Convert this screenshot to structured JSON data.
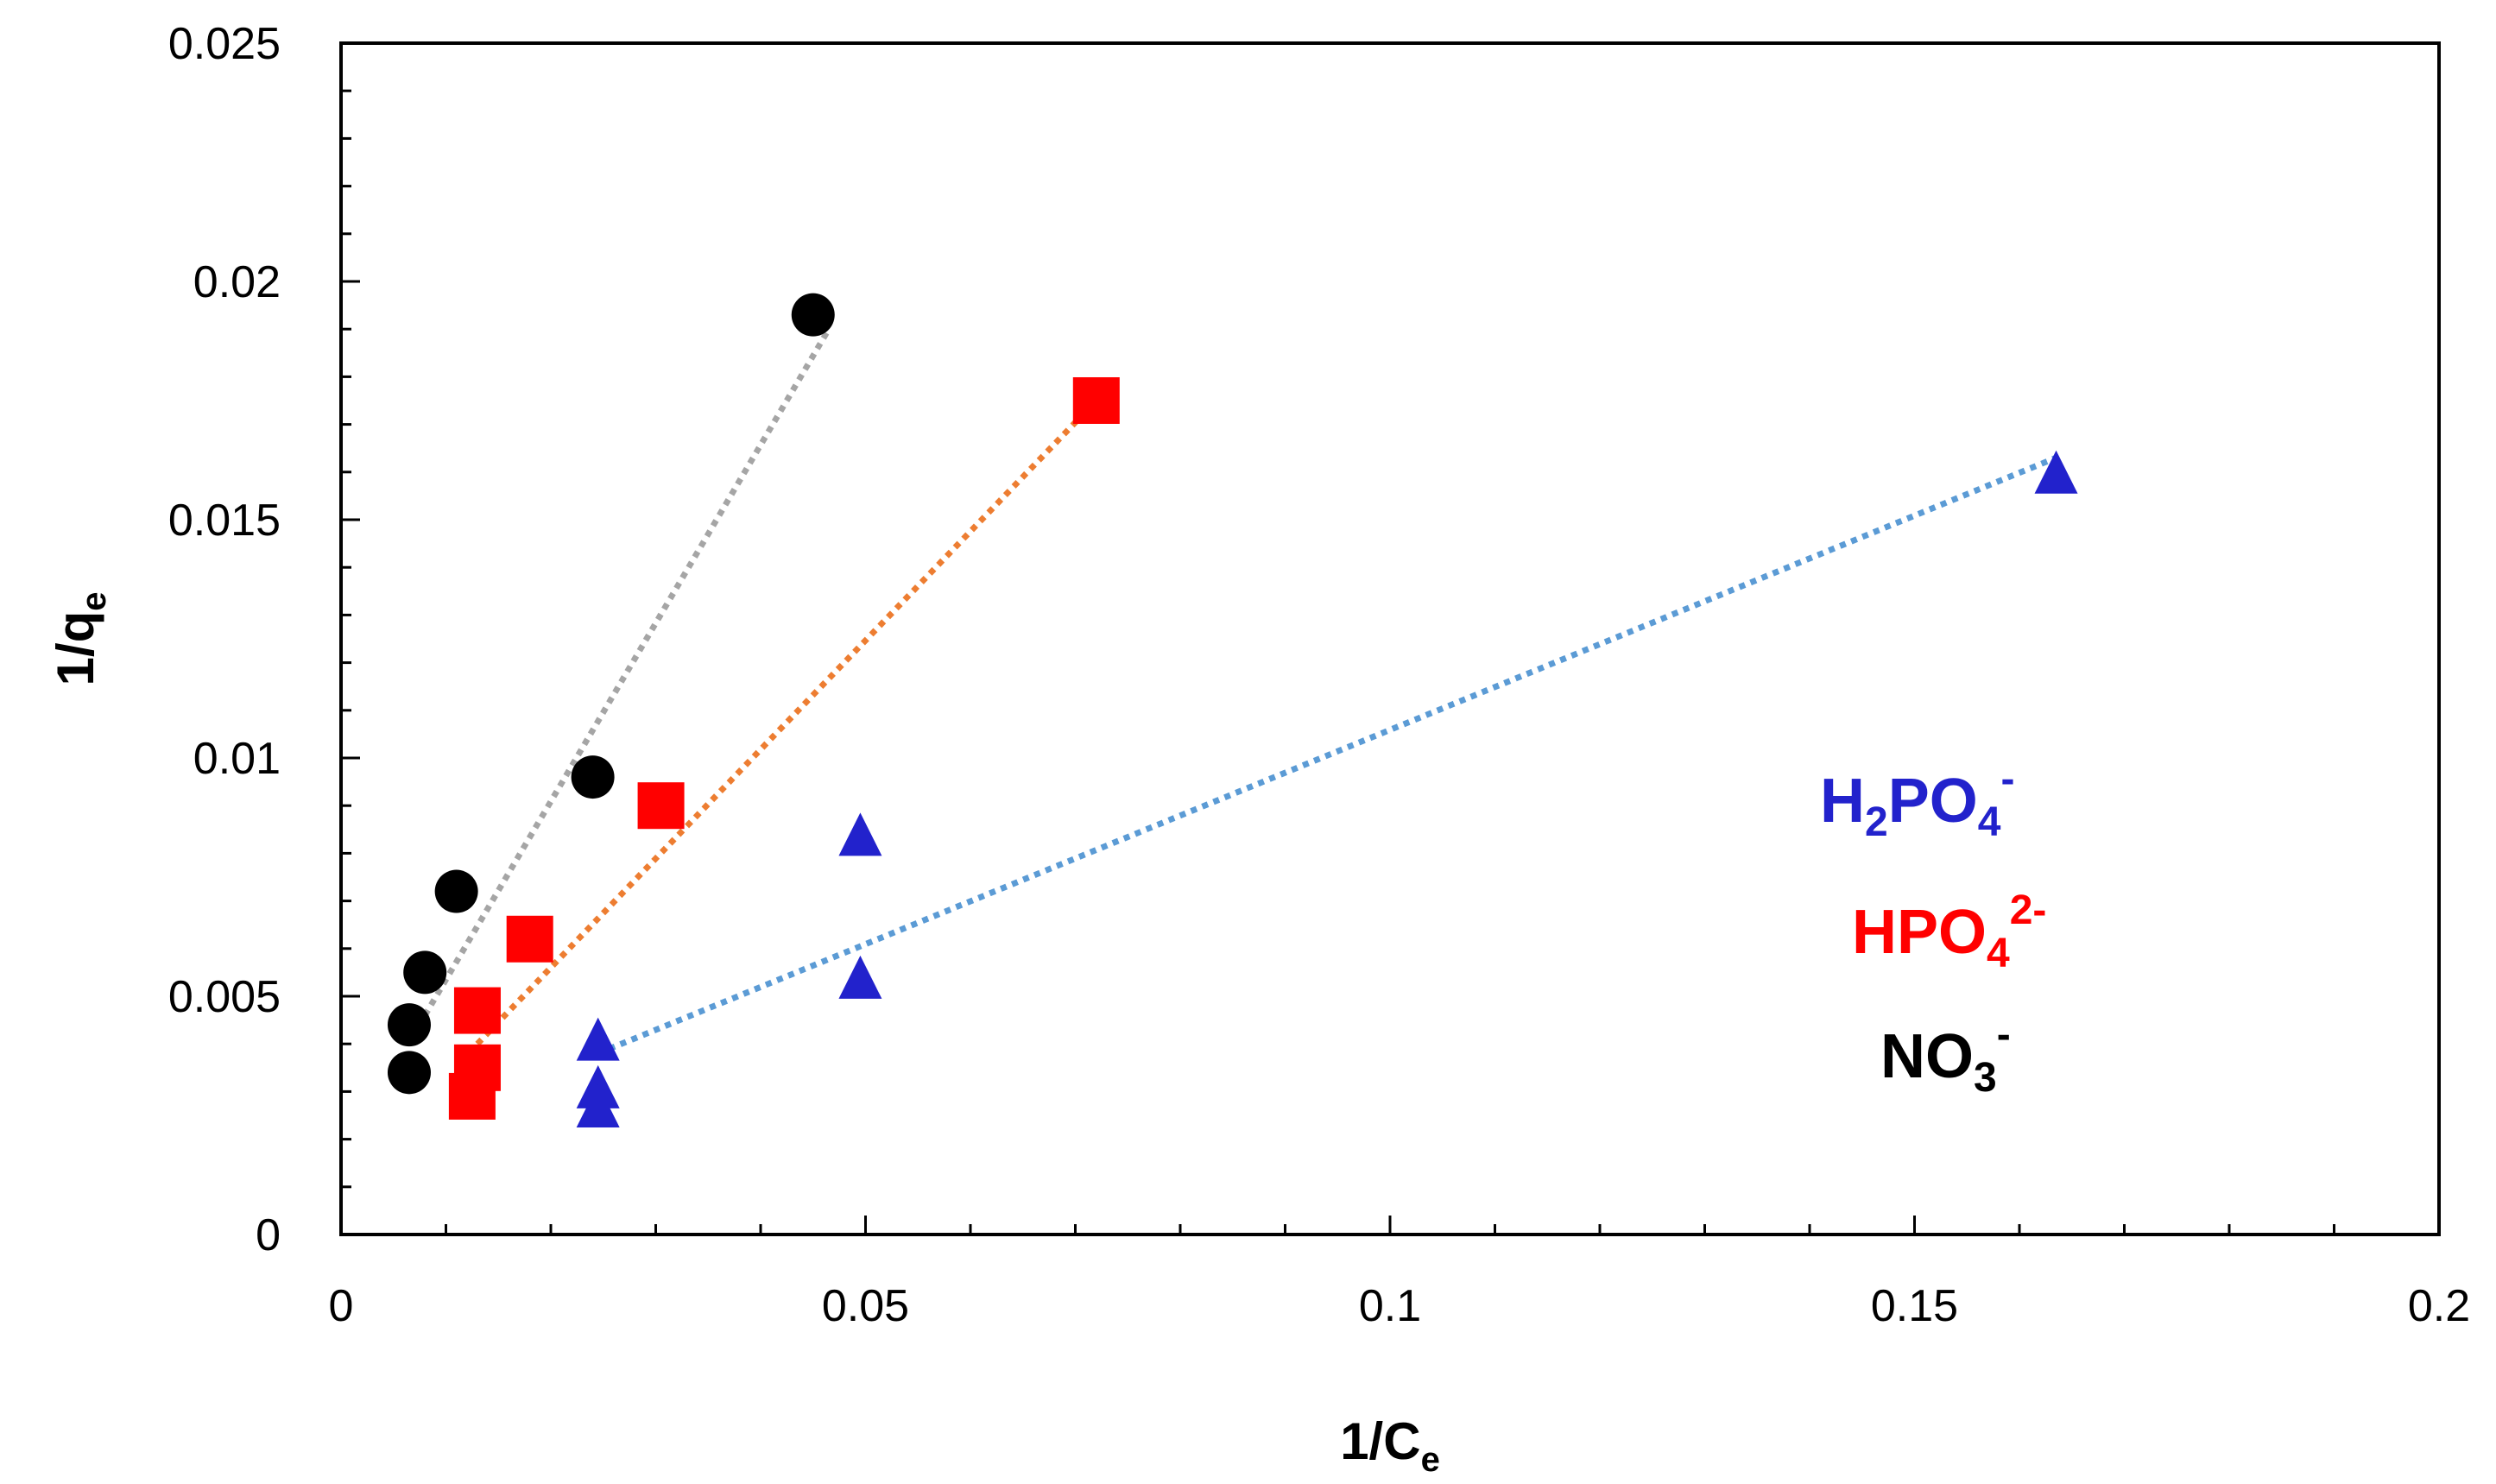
{
  "chart_data": {
    "type": "scatter",
    "title": "",
    "xlabel": {
      "main": "1/C",
      "sub": "e"
    },
    "ylabel": {
      "main": "1/q",
      "sub": "e"
    },
    "xlim": [
      0,
      0.2
    ],
    "ylim": [
      0,
      0.025
    ],
    "x_ticks": [
      "0",
      "0.05",
      "0.1",
      "0.15",
      "0.2"
    ],
    "y_ticks": [
      "0",
      "0.005",
      "0.01",
      "0.015",
      "0.02",
      "0.025"
    ],
    "grid": false,
    "legend_position": "right",
    "series": [
      {
        "name": "H2PO4-",
        "label_parts": {
          "a": "H",
          "b": "2",
          "c": "PO",
          "d": "4",
          "e": "-"
        },
        "marker": "triangle",
        "color": "#2222cc",
        "trend_color": "#5b9bd5",
        "x": [
          0.0245,
          0.0245,
          0.0245,
          0.0495,
          0.0495,
          0.1635
        ],
        "y": [
          0.0041,
          0.0031,
          0.0027,
          0.0084,
          0.0054,
          0.016
        ],
        "trendline": {
          "x": [
            0.0245,
            0.1635
          ],
          "y": [
            0.0038,
            0.0163
          ]
        }
      },
      {
        "name": "HPO42-",
        "label_parts": {
          "a": "HPO",
          "b": "4",
          "e": "2-"
        },
        "marker": "square",
        "color": "#ff0000",
        "trend_color": "#ed7d31",
        "x": [
          0.013,
          0.013,
          0.0125,
          0.018,
          0.0305,
          0.072
        ],
        "y": [
          0.0047,
          0.0035,
          0.0029,
          0.0062,
          0.009,
          0.0175
        ],
        "trendline": {
          "x": [
            0.013,
            0.072
          ],
          "y": [
            0.004,
            0.0175
          ]
        }
      },
      {
        "name": "NO3-",
        "label_parts": {
          "a": "NO",
          "b": "3",
          "e": "-"
        },
        "marker": "circle",
        "color": "#000000",
        "trend_color": "#a5a5a5",
        "x": [
          0.0065,
          0.0065,
          0.008,
          0.011,
          0.024,
          0.045
        ],
        "y": [
          0.0044,
          0.0034,
          0.0055,
          0.0072,
          0.0096,
          0.0193
        ],
        "trendline": {
          "x": [
            0.008,
            0.0465
          ],
          "y": [
            0.0046,
            0.019
          ]
        }
      }
    ]
  }
}
